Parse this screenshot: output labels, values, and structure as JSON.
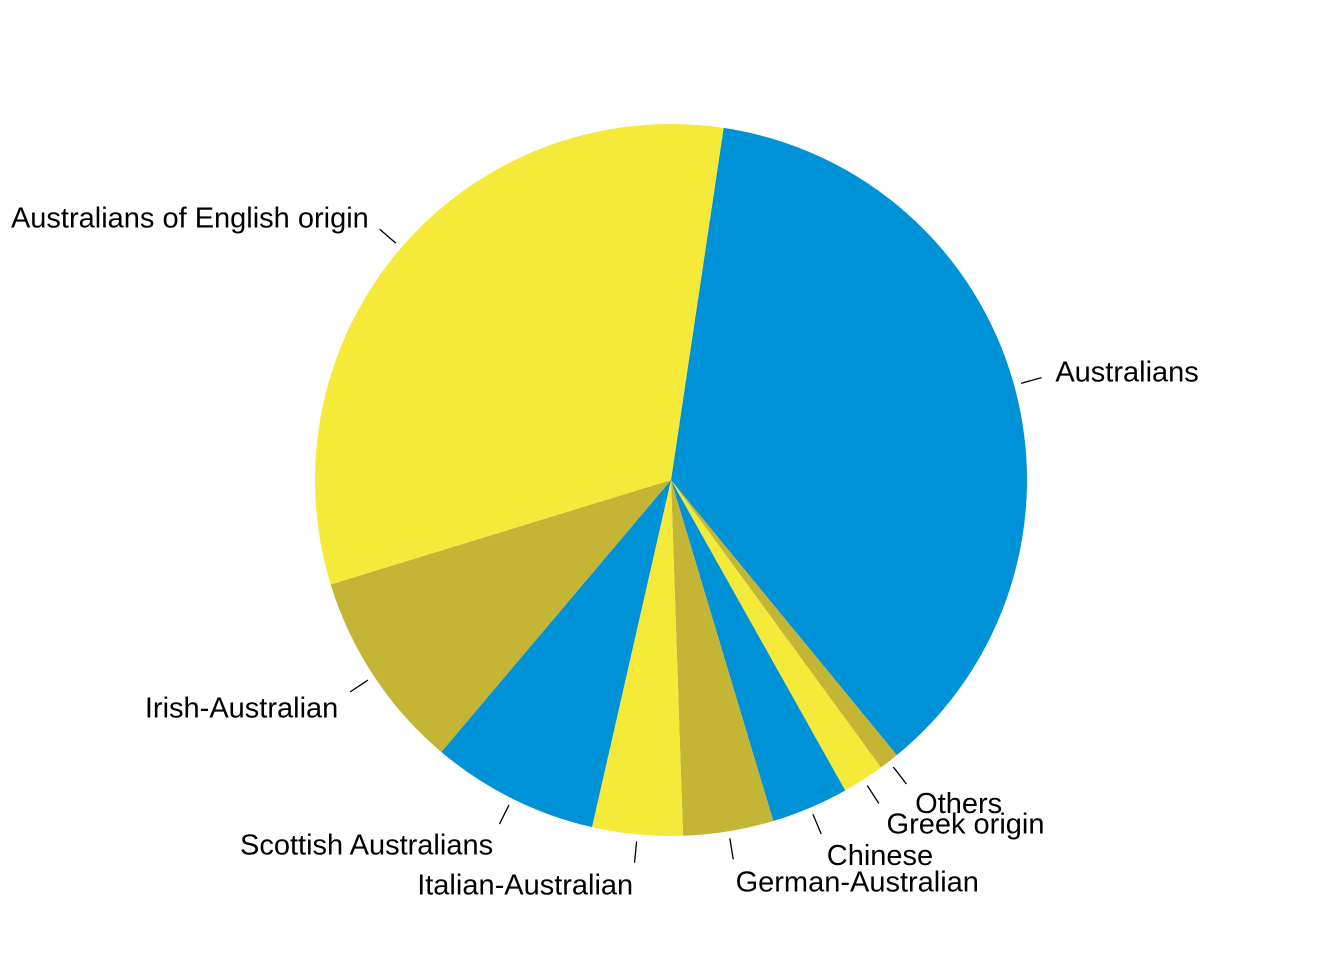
{
  "chart_data": {
    "type": "pie",
    "title": "",
    "start_angle_deg": 81.5,
    "direction": "clockwise",
    "slices": [
      {
        "label": "Australians",
        "value": 36.7,
        "color": "#0092D6"
      },
      {
        "label": "Others",
        "value": 0.9,
        "color": "#C4B634"
      },
      {
        "label": "Greek origin",
        "value": 1.9,
        "color": "#F5E93A"
      },
      {
        "label": "Chinese",
        "value": 3.5,
        "color": "#0092D6"
      },
      {
        "label": "German-Australian",
        "value": 4.1,
        "color": "#C4B634"
      },
      {
        "label": "Italian-Australian",
        "value": 4.1,
        "color": "#F5E93A"
      },
      {
        "label": "Scottish Australians",
        "value": 7.6,
        "color": "#0092D6"
      },
      {
        "label": "Irish-Australian",
        "value": 9.1,
        "color": "#C4B634"
      },
      {
        "label": "Australians of English origin",
        "value": 32.1,
        "color": "#F5E93A"
      }
    ]
  }
}
